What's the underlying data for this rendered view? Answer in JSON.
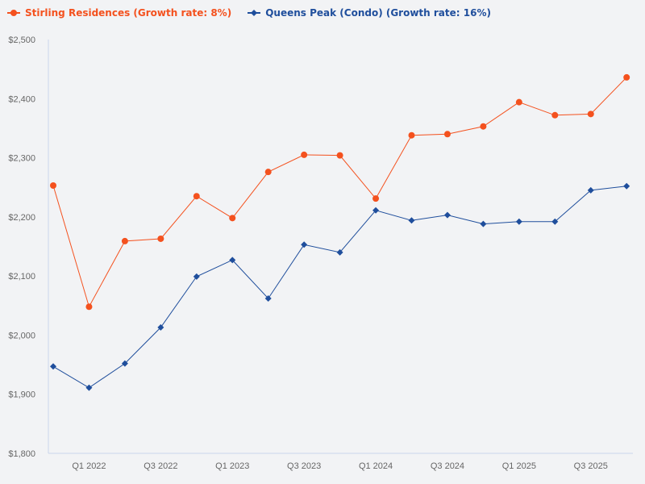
{
  "chart_data": {
    "type": "line",
    "categories": [
      "",
      "Q1 2022",
      "",
      "Q3 2022",
      "",
      "Q1 2023",
      "",
      "Q3 2023",
      "",
      "Q1 2024",
      "",
      "Q3 2024",
      "",
      "Q1 2025",
      "",
      "Q3 2025",
      ""
    ],
    "ylim": [
      1800,
      2500
    ],
    "yticks": [
      1800,
      1900,
      2000,
      2100,
      2200,
      2300,
      2400,
      2500
    ],
    "ytick_labels": [
      "$1,800",
      "$1,900",
      "$2,000",
      "$2,100",
      "$2,200",
      "$2,300",
      "$2,400",
      "$2,500"
    ],
    "grid": false,
    "legend": "top-left",
    "series": [
      {
        "name": "Stirling Residences (Growth rate: 8%)",
        "color": "#f4511e",
        "marker": "circle",
        "values": [
          2253,
          2048,
          2159,
          2163,
          2235,
          2198,
          2276,
          2305,
          2304,
          2231,
          2338,
          2340,
          2353,
          2394,
          2372,
          2374,
          2436
        ]
      },
      {
        "name": "Queens Peak (Condo) (Growth rate: 16%)",
        "color": "#1f4e9c",
        "marker": "diamond",
        "values": [
          1947,
          1911,
          1952,
          2013,
          2099,
          2127,
          2062,
          2153,
          2140,
          2211,
          2194,
          2203,
          2188,
          2192,
          2192,
          2245,
          2252
        ]
      }
    ]
  }
}
